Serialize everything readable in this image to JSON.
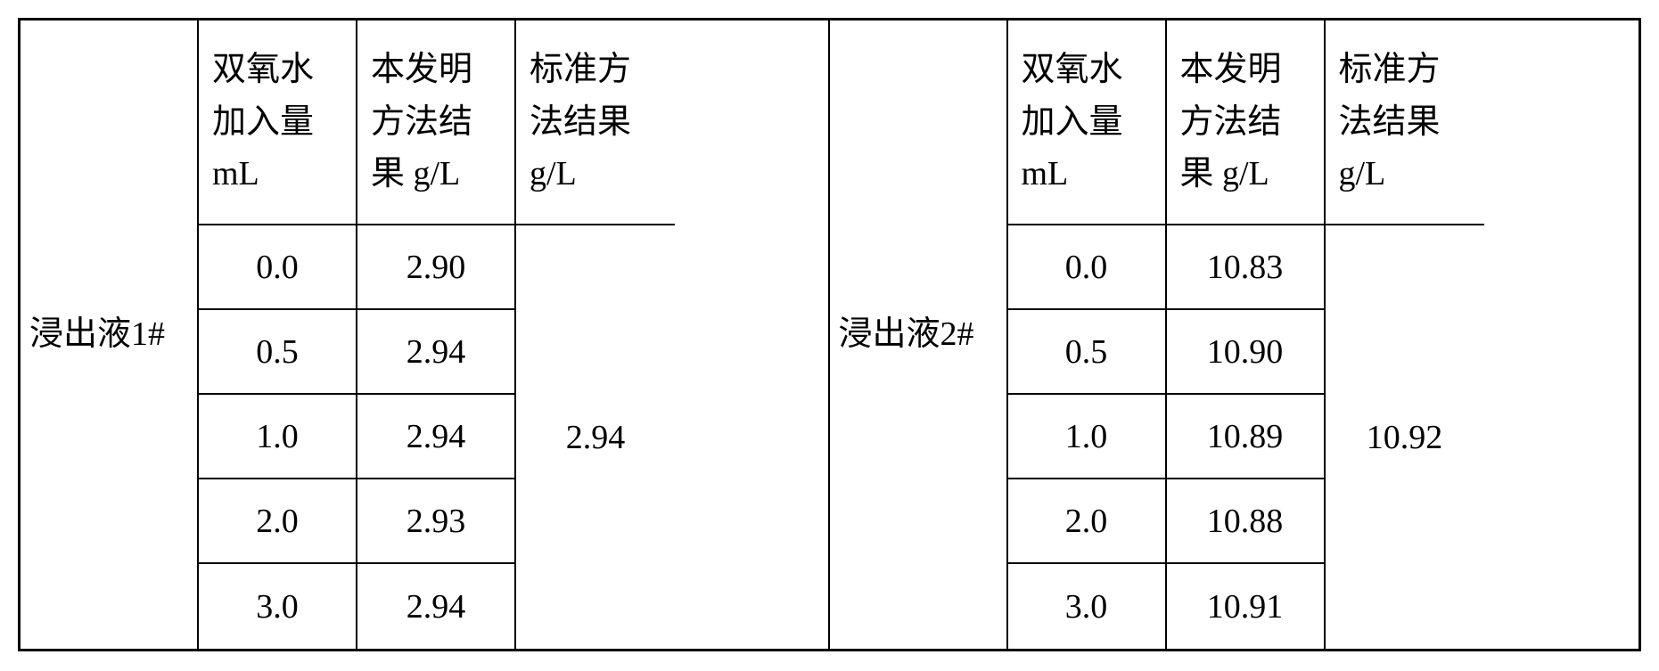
{
  "headers": {
    "peroxide": "双氧水加入量 mL",
    "invention": "本发明方法结果 g/L",
    "standard": "标准方法结果 g/L"
  },
  "left": {
    "label": "浸出液1#",
    "peroxide_values": [
      "0.0",
      "0.5",
      "1.0",
      "2.0",
      "3.0"
    ],
    "invention_values": [
      "2.90",
      "2.94",
      "2.94",
      "2.93",
      "2.94"
    ],
    "standard_value": "2.94"
  },
  "right": {
    "label": "浸出液2#",
    "peroxide_values": [
      "0.0",
      "0.5",
      "1.0",
      "2.0",
      "3.0"
    ],
    "invention_values": [
      "10.83",
      "10.90",
      "10.89",
      "10.88",
      "10.91"
    ],
    "standard_value": "10.92"
  },
  "style": {
    "background_color": "#ffffff",
    "border_color": "#000000",
    "text_color": "#000000",
    "font_size_pt": 28,
    "font_family": "SimSun",
    "outer_border_width": 3,
    "inner_border_width": 2,
    "header_row_height": 230,
    "data_row_height": 95,
    "total_width": 1821,
    "total_height": 713,
    "col_label_width": 200,
    "col_data_width": 178
  }
}
